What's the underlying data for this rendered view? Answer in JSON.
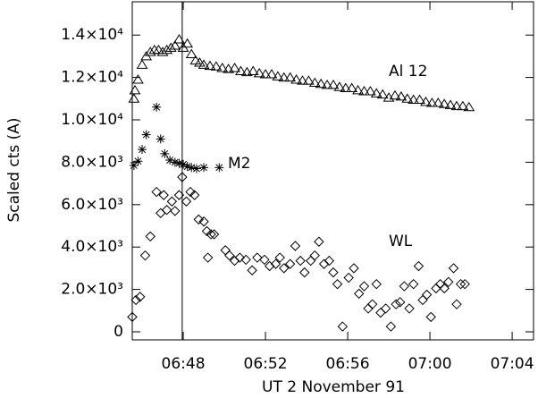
{
  "chart_data": {
    "type": "scatter",
    "xlabel": "UT 2 November 91",
    "ylabel": "Scaled cts (A)",
    "xlim": [
      45.52,
      65.04
    ],
    "ylim": [
      -380,
      15570
    ],
    "xticks": [
      {
        "value": 48,
        "label": "06:48"
      },
      {
        "value": 52,
        "label": "06:52"
      },
      {
        "value": 56,
        "label": "06:56"
      },
      {
        "value": 60,
        "label": "07:00"
      },
      {
        "value": 64,
        "label": "07:04"
      }
    ],
    "yticks": [
      0,
      {
        "value": 2000,
        "label": "2.0×10³"
      },
      {
        "value": 4000,
        "label": "4.0×10³"
      },
      {
        "value": 6000,
        "label": "6.0×10³"
      },
      {
        "value": 8000,
        "label": "8.0×10³"
      },
      {
        "value": 10000,
        "label": "1.0×10⁴"
      },
      {
        "value": 12000,
        "label": "1.2×10⁴"
      },
      {
        "value": 14000,
        "label": "1.4×10⁴"
      }
    ],
    "vline": 47.95,
    "series": [
      {
        "name": "Al 12",
        "color": "#000000",
        "marker": "triangle",
        "x": [
          45.6,
          45.65,
          45.8,
          46.0,
          46.2,
          46.4,
          46.6,
          46.8,
          47.0,
          47.2,
          47.4,
          47.6,
          47.8,
          48.0,
          48.2,
          48.4,
          48.6,
          48.8,
          49.0,
          49.3,
          49.6,
          49.9,
          50.2,
          50.5,
          50.8,
          51.1,
          51.4,
          51.7,
          52.0,
          52.3,
          52.6,
          52.9,
          53.2,
          53.5,
          53.8,
          54.1,
          54.4,
          54.7,
          55.0,
          55.3,
          55.6,
          55.9,
          56.2,
          56.5,
          56.8,
          57.1,
          57.4,
          57.7,
          58.0,
          58.3,
          58.6,
          58.9,
          59.2,
          59.5,
          59.8,
          60.1,
          60.4,
          60.7,
          61.0,
          61.3,
          61.6,
          61.9
        ],
        "values": [
          11000,
          11400,
          11900,
          12600,
          13000,
          13200,
          13300,
          13300,
          13200,
          13300,
          13400,
          13500,
          13800,
          13400,
          13600,
          13100,
          12800,
          12700,
          12600,
          12550,
          12520,
          12450,
          12400,
          12450,
          12300,
          12250,
          12300,
          12200,
          12150,
          12150,
          12050,
          12000,
          12000,
          11900,
          11850,
          11850,
          11750,
          11700,
          11650,
          11650,
          11550,
          11500,
          11500,
          11400,
          11350,
          11350,
          11250,
          11200,
          11050,
          11150,
          11100,
          11000,
          10950,
          10950,
          10850,
          10800,
          10800,
          10750,
          10700,
          10650,
          10650,
          10600
        ]
      },
      {
        "name": "M2",
        "color": "#000000",
        "marker": "asterisk",
        "x": [
          45.6,
          45.8,
          46.0,
          46.2,
          46.7,
          46.9,
          47.1,
          47.35,
          47.6,
          47.8,
          48.0,
          48.2,
          48.4,
          48.65,
          49.0,
          49.75
        ],
        "values": [
          7850,
          8050,
          8600,
          9300,
          10600,
          9100,
          8400,
          8100,
          8000,
          7950,
          7900,
          7800,
          7750,
          7700,
          7750,
          7750
        ]
      },
      {
        "name": "WL",
        "color": "#000000",
        "marker": "diamond",
        "x": [
          45.52,
          45.7,
          45.9,
          46.15,
          46.4,
          46.7,
          46.9,
          47.05,
          47.2,
          47.45,
          47.6,
          47.8,
          47.95,
          48.15,
          48.35,
          48.55,
          48.75,
          49.0,
          49.15,
          49.2,
          49.35,
          49.5,
          50.05,
          50.25,
          50.5,
          50.75,
          51.05,
          51.35,
          51.6,
          51.95,
          52.2,
          52.5,
          52.7,
          52.9,
          53.2,
          53.45,
          53.7,
          53.9,
          54.2,
          54.4,
          54.6,
          54.85,
          55.1,
          55.3,
          55.5,
          55.75,
          56.05,
          56.3,
          56.55,
          56.8,
          57.0,
          57.2,
          57.4,
          57.6,
          57.85,
          58.1,
          58.35,
          58.55,
          58.75,
          59.0,
          59.2,
          59.45,
          59.65,
          59.85,
          60.05,
          60.3,
          60.5,
          60.7,
          60.9,
          61.15,
          61.3,
          61.5,
          61.7
        ],
        "values": [
          700,
          1500,
          1650,
          3600,
          4500,
          6600,
          5600,
          6450,
          5750,
          6150,
          5700,
          6450,
          7300,
          6150,
          6600,
          6450,
          5300,
          5200,
          4750,
          3500,
          4600,
          4600,
          3850,
          3600,
          3350,
          3500,
          3400,
          2900,
          3500,
          3400,
          3100,
          3200,
          3500,
          3000,
          3200,
          4050,
          3350,
          2800,
          3350,
          3600,
          4250,
          3200,
          3350,
          2800,
          2250,
          250,
          2550,
          3000,
          1800,
          2150,
          1100,
          1300,
          2250,
          900,
          1100,
          250,
          1300,
          1400,
          2150,
          1100,
          2250,
          3100,
          1500,
          1750,
          700,
          2050,
          2250,
          2050,
          2350,
          3000,
          1300,
          2250,
          2250
        ]
      }
    ]
  }
}
